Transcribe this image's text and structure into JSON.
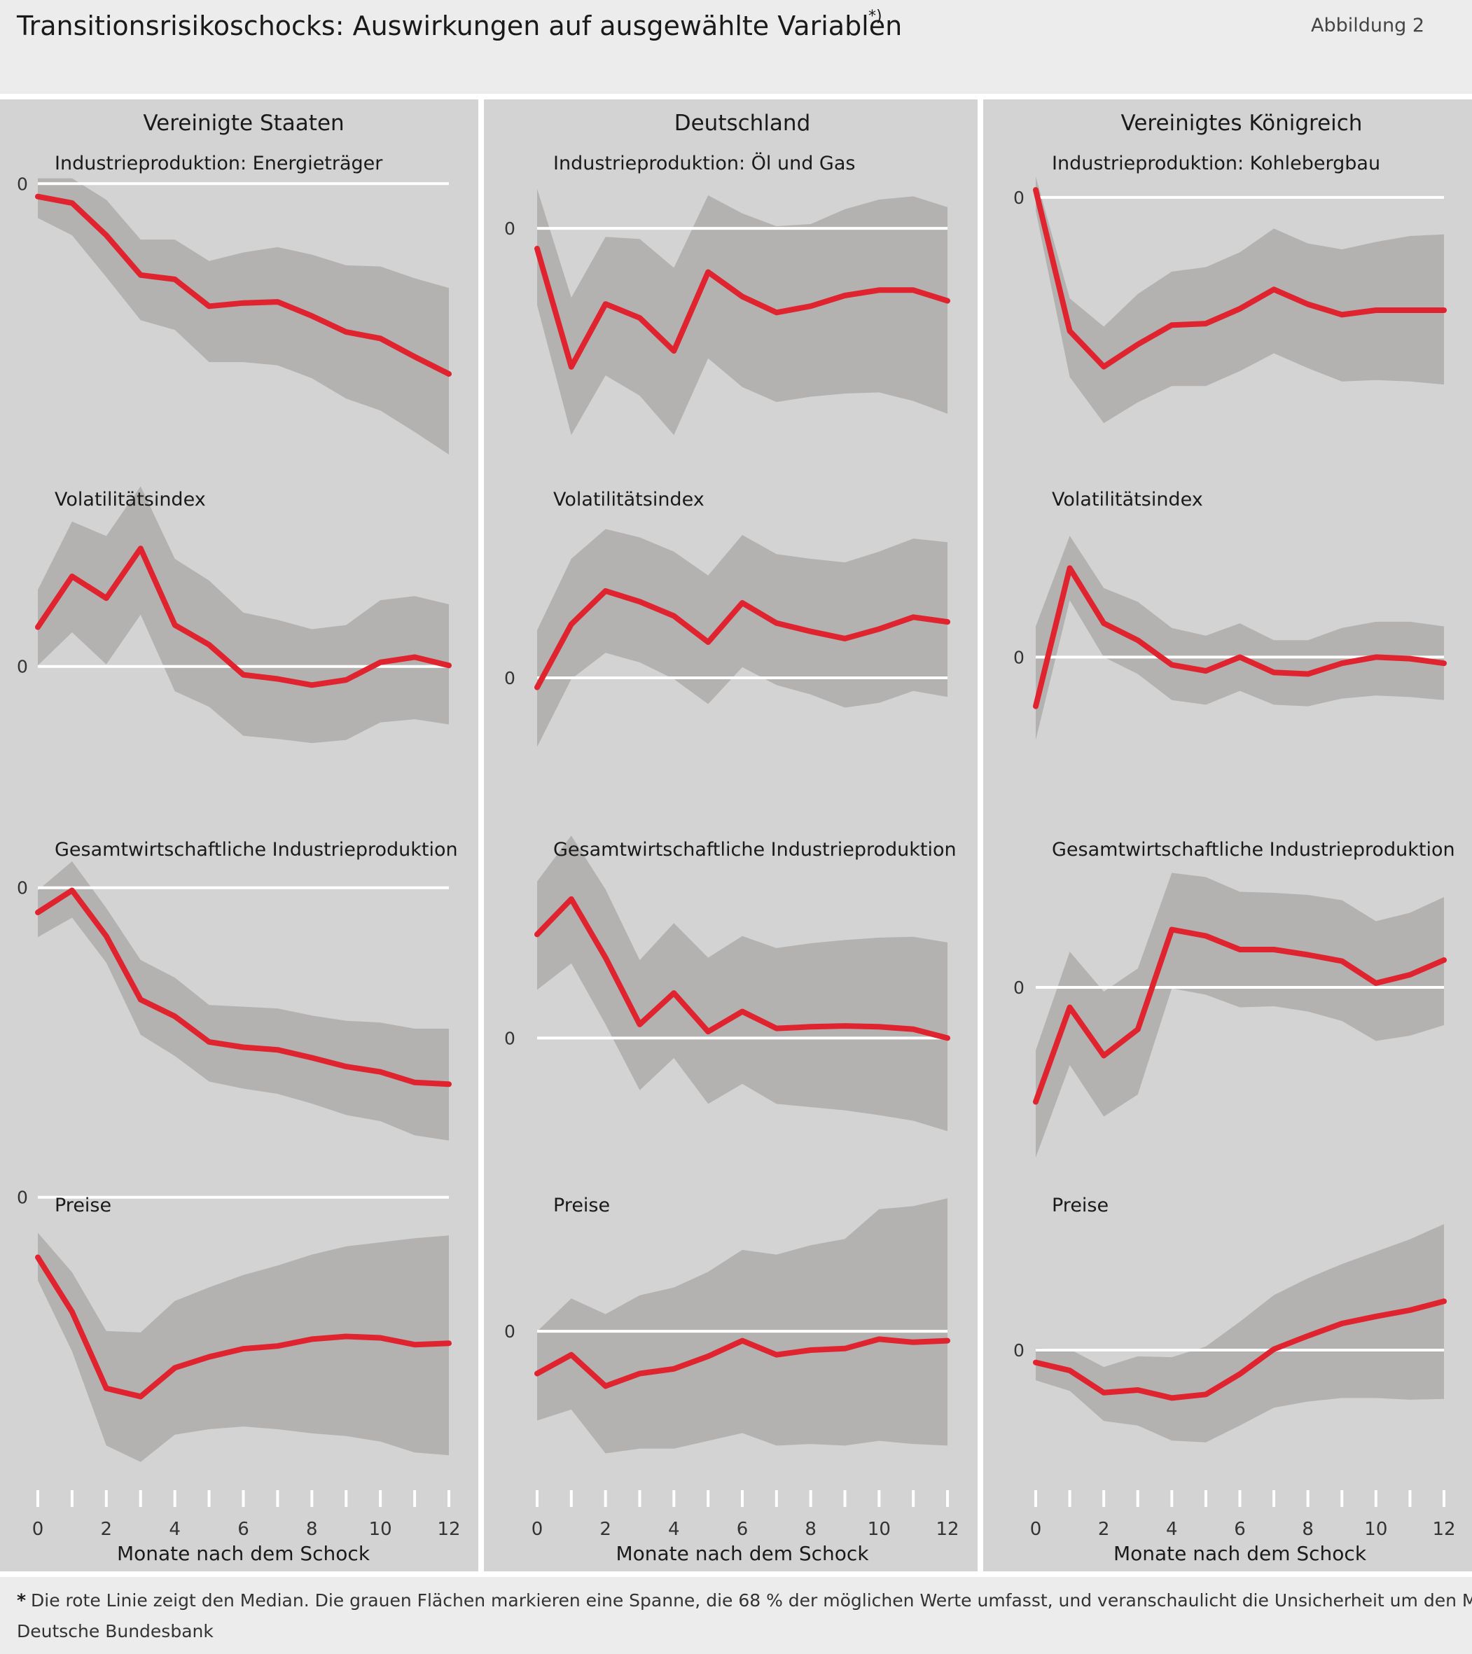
{
  "title": "Transitionsrisikoschocks: Auswirkungen auf ausgewählte Variablen",
  "title_sup": "*)",
  "figure_label": "Abbildung 2",
  "xlabel": "Monate nach dem Schock",
  "xticks": [
    "0",
    "2",
    "4",
    "6",
    "8",
    "10",
    "12"
  ],
  "zero_label": "0",
  "footnote_star": "*",
  "footnote": "Die rote Linie zeigt den Median. Die grauen Flächen markieren eine Spanne, die 68 % der möglichen Werte umfasst, und veranschaulicht die Unsicherheit um den Medianwert.",
  "source": "Deutsche Bundesbank",
  "colors": {
    "background": "#ececec",
    "panel": "#d3d3d3",
    "band": "#b4b2b1",
    "median": "#e0242f",
    "zero_line": "#ffffff"
  },
  "chart_data": [
    {
      "type": "line",
      "column": "Vereinigte Staaten",
      "title": "Industrieproduktion: Energieträger",
      "x": [
        0,
        1,
        2,
        3,
        4,
        5,
        6,
        7,
        8,
        9,
        10,
        11,
        12
      ],
      "ylim": [
        -2.2,
        0.08
      ],
      "median": [
        -0.12,
        -0.18,
        -0.48,
        -0.85,
        -0.89,
        -1.14,
        -1.11,
        -1.1,
        -1.23,
        -1.38,
        -1.44,
        -1.61,
        -1.77
      ],
      "upper": [
        0.05,
        0.05,
        -0.15,
        -0.52,
        -0.52,
        -0.72,
        -0.64,
        -0.59,
        -0.66,
        -0.76,
        -0.77,
        -0.88,
        -0.97
      ],
      "lower": [
        -0.32,
        -0.48,
        -0.87,
        -1.27,
        -1.36,
        -1.66,
        -1.66,
        -1.69,
        -1.81,
        -2.0,
        -2.11,
        -2.31,
        -2.52
      ]
    },
    {
      "type": "line",
      "column": "Vereinigte Staaten",
      "title": "Volatilitätsindex",
      "x": [
        0,
        1,
        2,
        3,
        4,
        5,
        6,
        7,
        8,
        9,
        10,
        11,
        12
      ],
      "ylim": [
        -0.8,
        1.5
      ],
      "median": [
        0.38,
        0.87,
        0.66,
        1.14,
        0.4,
        0.21,
        -0.08,
        -0.12,
        -0.18,
        -0.13,
        0.04,
        0.09,
        0.01
      ],
      "upper": [
        0.74,
        1.4,
        1.26,
        1.74,
        1.04,
        0.83,
        0.52,
        0.45,
        0.36,
        0.4,
        0.64,
        0.68,
        0.6
      ],
      "lower": [
        0.01,
        0.33,
        0.02,
        0.5,
        -0.24,
        -0.39,
        -0.67,
        -0.7,
        -0.74,
        -0.71,
        -0.54,
        -0.51,
        -0.56
      ]
    },
    {
      "type": "line",
      "column": "Vereinigte Staaten",
      "title": "Gesamtwirtschaftliche Industrieproduktion",
      "x": [
        0,
        1,
        2,
        3,
        4,
        5,
        6,
        7,
        8,
        9,
        10,
        11,
        12
      ],
      "ylim": [
        -2.8,
        0.3
      ],
      "median": [
        -0.28,
        -0.03,
        -0.55,
        -1.27,
        -1.46,
        -1.75,
        -1.81,
        -1.84,
        -1.93,
        -2.03,
        -2.09,
        -2.21,
        -2.23
      ],
      "upper": [
        -0.03,
        0.3,
        -0.23,
        -0.82,
        -1.02,
        -1.33,
        -1.35,
        -1.37,
        -1.45,
        -1.51,
        -1.53,
        -1.6,
        -1.6
      ],
      "lower": [
        -0.56,
        -0.34,
        -0.85,
        -1.67,
        -1.91,
        -2.2,
        -2.28,
        -2.34,
        -2.45,
        -2.58,
        -2.65,
        -2.81,
        -2.87
      ]
    },
    {
      "type": "line",
      "column": "Vereinigte Staaten",
      "title": "Preise",
      "x": [
        0,
        1,
        2,
        3,
        4,
        5,
        6,
        7,
        8,
        9,
        10,
        11,
        12
      ],
      "ylim": [
        -1.9,
        0.05
      ],
      "median": [
        -0.44,
        -0.84,
        -1.4,
        -1.46,
        -1.25,
        -1.17,
        -1.11,
        -1.09,
        -1.04,
        -1.02,
        -1.03,
        -1.08,
        -1.07
      ],
      "upper": [
        -0.26,
        -0.55,
        -0.98,
        -0.99,
        -0.76,
        -0.66,
        -0.57,
        -0.5,
        -0.42,
        -0.36,
        -0.33,
        -0.3,
        -0.28
      ],
      "lower": [
        -0.61,
        -1.13,
        -1.82,
        -1.94,
        -1.74,
        -1.7,
        -1.68,
        -1.7,
        -1.73,
        -1.75,
        -1.79,
        -1.87,
        -1.89
      ]
    },
    {
      "type": "line",
      "column": "Deutschland",
      "title": "Industrieproduktion: Öl und Gas",
      "x": [
        0,
        1,
        2,
        3,
        4,
        5,
        6,
        7,
        8,
        9,
        10,
        11,
        12
      ],
      "ylim": [
        -1.8,
        0.5
      ],
      "median": [
        -0.19,
        -1.3,
        -0.71,
        -0.84,
        -1.15,
        -0.41,
        -0.64,
        -0.79,
        -0.73,
        -0.63,
        -0.58,
        -0.58,
        -0.68
      ],
      "upper": [
        0.37,
        -0.65,
        -0.08,
        -0.1,
        -0.37,
        0.31,
        0.14,
        0.02,
        0.04,
        0.18,
        0.27,
        0.3,
        0.2
      ],
      "lower": [
        -0.72,
        -1.94,
        -1.38,
        -1.57,
        -1.94,
        -1.22,
        -1.49,
        -1.63,
        -1.58,
        -1.55,
        -1.54,
        -1.62,
        -1.74
      ]
    },
    {
      "type": "line",
      "column": "Deutschland",
      "title": "Volatilitätsindex",
      "x": [
        0,
        1,
        2,
        3,
        4,
        5,
        6,
        7,
        8,
        9,
        10,
        11,
        12
      ],
      "ylim": [
        -0.6,
        1.4
      ],
      "median": [
        -0.08,
        0.45,
        0.73,
        0.64,
        0.52,
        0.3,
        0.63,
        0.46,
        0.39,
        0.33,
        0.41,
        0.51,
        0.47
      ],
      "upper": [
        0.4,
        1.0,
        1.25,
        1.18,
        1.06,
        0.86,
        1.2,
        1.04,
        1.0,
        0.97,
        1.06,
        1.17,
        1.14
      ],
      "lower": [
        -0.58,
        -0.01,
        0.21,
        0.13,
        -0.01,
        -0.22,
        0.09,
        -0.06,
        -0.14,
        -0.25,
        -0.21,
        -0.11,
        -0.16
      ]
    },
    {
      "type": "line",
      "column": "Deutschland",
      "title": "Gesamtwirtschaftliche Industrieproduktion",
      "x": [
        0,
        1,
        2,
        3,
        4,
        5,
        6,
        7,
        8,
        9,
        10,
        11,
        12
      ],
      "ylim": [
        -1.2,
        2.2
      ],
      "median": [
        1.29,
        1.73,
        1.0,
        0.17,
        0.56,
        0.08,
        0.33,
        0.12,
        0.14,
        0.15,
        0.14,
        0.11,
        0.0
      ],
      "upper": [
        1.95,
        2.52,
        1.85,
        0.97,
        1.43,
        1.0,
        1.27,
        1.12,
        1.18,
        1.22,
        1.25,
        1.26,
        1.19
      ],
      "lower": [
        0.6,
        0.93,
        0.17,
        -0.65,
        -0.25,
        -0.82,
        -0.57,
        -0.82,
        -0.86,
        -0.9,
        -0.96,
        -1.03,
        -1.16
      ]
    },
    {
      "type": "line",
      "column": "Deutschland",
      "title": "Preise",
      "x": [
        0,
        1,
        2,
        3,
        4,
        5,
        6,
        7,
        8,
        9,
        10,
        11,
        12
      ],
      "ylim": [
        -0.8,
        0.9
      ],
      "median": [
        -0.27,
        -0.15,
        -0.35,
        -0.27,
        -0.24,
        -0.16,
        -0.06,
        -0.15,
        -0.12,
        -0.11,
        -0.05,
        -0.07,
        -0.06
      ],
      "upper": [
        0.0,
        0.21,
        0.11,
        0.23,
        0.28,
        0.38,
        0.52,
        0.49,
        0.55,
        0.59,
        0.78,
        0.8,
        0.85
      ],
      "lower": [
        -0.57,
        -0.5,
        -0.78,
        -0.75,
        -0.75,
        -0.7,
        -0.65,
        -0.73,
        -0.72,
        -0.73,
        -0.7,
        -0.72,
        -0.73
      ]
    },
    {
      "type": "line",
      "column": "Vereinigtes Königreich",
      "title": "Industrieproduktion: Kohlebergbau",
      "x": [
        0,
        1,
        2,
        3,
        4,
        5,
        6,
        7,
        8,
        9,
        10,
        11,
        12
      ],
      "ylim": [
        -1.5,
        0.15
      ],
      "median": [
        0.05,
        -0.9,
        -1.14,
        -0.99,
        -0.86,
        -0.85,
        -0.75,
        -0.62,
        -0.72,
        -0.79,
        -0.76,
        -0.76,
        -0.76
      ],
      "upper": [
        0.14,
        -0.68,
        -0.87,
        -0.65,
        -0.5,
        -0.47,
        -0.37,
        -0.21,
        -0.31,
        -0.35,
        -0.3,
        -0.26,
        -0.25
      ],
      "lower": [
        -0.09,
        -1.21,
        -1.52,
        -1.38,
        -1.27,
        -1.27,
        -1.17,
        -1.05,
        -1.15,
        -1.24,
        -1.23,
        -1.24,
        -1.26
      ]
    },
    {
      "type": "line",
      "column": "Vereinigtes Königreich",
      "title": "Volatilitätsindex",
      "x": [
        0,
        1,
        2,
        3,
        4,
        5,
        6,
        7,
        8,
        9,
        10,
        11,
        12
      ],
      "ylim": [
        -0.6,
        0.95
      ],
      "median": [
        -0.32,
        0.58,
        0.22,
        0.11,
        -0.05,
        -0.09,
        0.0,
        -0.1,
        -0.11,
        -0.04,
        0.0,
        -0.01,
        -0.04
      ],
      "upper": [
        0.2,
        0.79,
        0.45,
        0.36,
        0.19,
        0.14,
        0.22,
        0.11,
        0.11,
        0.19,
        0.23,
        0.23,
        0.2
      ],
      "lower": [
        -0.54,
        0.37,
        0.0,
        -0.11,
        -0.28,
        -0.31,
        -0.22,
        -0.31,
        -0.32,
        -0.27,
        -0.25,
        -0.26,
        -0.28
      ]
    },
    {
      "type": "line",
      "column": "Vereinigtes Königreich",
      "title": "Gesamtwirtschaftliche Industrieproduktion",
      "x": [
        0,
        1,
        2,
        3,
        4,
        5,
        6,
        7,
        8,
        9,
        10,
        11,
        12
      ],
      "ylim": [
        -1.4,
        1.2
      ],
      "median": [
        -1.09,
        -0.19,
        -0.65,
        -0.4,
        0.55,
        0.49,
        0.36,
        0.36,
        0.31,
        0.25,
        0.04,
        0.12,
        0.26
      ],
      "upper": [
        -0.6,
        0.34,
        -0.04,
        0.18,
        1.09,
        1.05,
        0.91,
        0.9,
        0.88,
        0.83,
        0.63,
        0.71,
        0.86
      ],
      "lower": [
        -1.62,
        -0.74,
        -1.23,
        -1.02,
        -0.01,
        -0.07,
        -0.19,
        -0.18,
        -0.23,
        -0.32,
        -0.51,
        -0.46,
        -0.36
      ]
    },
    {
      "type": "line",
      "column": "Vereinigtes Königreich",
      "title": "Preise",
      "x": [
        0,
        1,
        2,
        3,
        4,
        5,
        6,
        7,
        8,
        9,
        10,
        11,
        12
      ],
      "ylim": [
        -1.2,
        1.8
      ],
      "median": [
        -0.14,
        -0.23,
        -0.48,
        -0.45,
        -0.54,
        -0.5,
        -0.27,
        0.01,
        0.16,
        0.3,
        0.38,
        0.45,
        0.55
      ],
      "upper": [
        0.02,
        0.01,
        -0.19,
        -0.07,
        -0.08,
        0.04,
        0.32,
        0.62,
        0.81,
        0.97,
        1.11,
        1.25,
        1.42
      ],
      "lower": [
        -0.34,
        -0.46,
        -0.8,
        -0.85,
        -1.02,
        -1.04,
        -0.85,
        -0.65,
        -0.58,
        -0.54,
        -0.54,
        -0.56,
        -0.55
      ]
    }
  ]
}
